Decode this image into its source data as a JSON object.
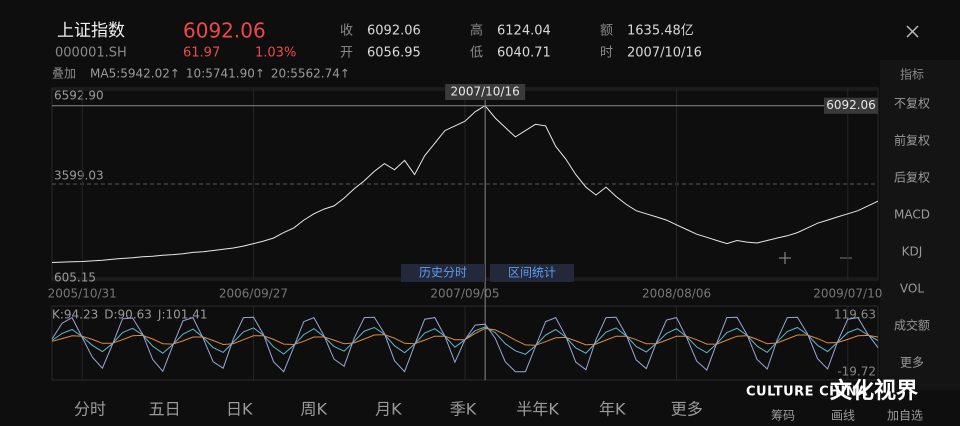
{
  "header": {
    "title": "上证指数",
    "code": "000001.SH",
    "price": 6092.06,
    "change": 61.97,
    "change_pct": "1.03%"
  },
  "stats": [
    {
      "label": "收",
      "value": 6092.06
    },
    {
      "label": "开",
      "value": 6056.95
    },
    {
      "label": "高",
      "value": 6124.04
    },
    {
      "label": "低",
      "value": 6040.71
    },
    {
      "label": "额",
      "value": "1635.48亿"
    },
    {
      "label": "时",
      "value": "2007/10/16"
    }
  ],
  "overlay": {
    "label": "叠加",
    "ma": [
      {
        "text": "MA5:5942.02↑",
        "color": "#7fb3dc"
      },
      {
        "text": "10:5741.90↑",
        "color": "#e59a4b"
      },
      {
        "text": "20:5562.74↑",
        "color": "#6cc4da"
      }
    ]
  },
  "chart_data": [
    {
      "type": "line",
      "color": "#e8e8e8",
      "categories": [
        null,
        null,
        null,
        "2005/10/31",
        null,
        null,
        null,
        null,
        null,
        null,
        null,
        null,
        null,
        null,
        null,
        null,
        null,
        null,
        null,
        null,
        "2006/09/27",
        null,
        null,
        null,
        null,
        null,
        null,
        null,
        null,
        null,
        null,
        null,
        null,
        null,
        null,
        null,
        null,
        null,
        null,
        null,
        null,
        "2007/09/05",
        null,
        null,
        null,
        null,
        null,
        null,
        null,
        null,
        null,
        null,
        null,
        null,
        null,
        null,
        null,
        null,
        null,
        null,
        null,
        null,
        "2008/08/06",
        null,
        null,
        null,
        null,
        null,
        null,
        null,
        null,
        null,
        null,
        null,
        null,
        null,
        null,
        null,
        null,
        "2009/07/10",
        null,
        null,
        null
      ],
      "values": [
        1100,
        1110,
        1120,
        1130,
        1150,
        1170,
        1200,
        1230,
        1250,
        1280,
        1300,
        1330,
        1350,
        1380,
        1420,
        1440,
        1480,
        1520,
        1560,
        1620,
        1700,
        1780,
        1880,
        2050,
        2200,
        2450,
        2650,
        2800,
        2900,
        3150,
        3450,
        3700,
        4000,
        4250,
        4050,
        4350,
        3900,
        4500,
        4900,
        5300,
        5450,
        5600,
        5900,
        6092.06,
        5700,
        5400,
        5100,
        5300,
        5500,
        5450,
        4800,
        4400,
        3900,
        3500,
        3250,
        3500,
        3200,
        2950,
        2750,
        2650,
        2550,
        2450,
        2300,
        2150,
        2000,
        1900,
        1800,
        1700,
        1800,
        1750,
        1720,
        1800,
        1880,
        1950,
        2050,
        2200,
        2350,
        2450,
        2550,
        2650,
        2750,
        2900,
        3050
      ],
      "ylim": [
        605.15,
        6592.9
      ],
      "yticks": [
        {
          "value": 6592.9,
          "label": "6592.90"
        },
        3599.03,
        605.15
      ],
      "cursor": {
        "date": "2007/10/16",
        "value": 6092.06
      },
      "buttons": [
        "历史分时",
        "区间统计"
      ]
    },
    {
      "type": "line",
      "ylim": [
        -19.72,
        119.63
      ],
      "yticks": [
        119.63,
        -19.72
      ],
      "series": [
        {
          "name": "K:94.23",
          "color": "#5fb8cf",
          "values": [
            60,
            78,
            88,
            70,
            48,
            32,
            52,
            80,
            91,
            74,
            46,
            28,
            50,
            76,
            89,
            68,
            42,
            30,
            56,
            82,
            92,
            73,
            44,
            26,
            48,
            75,
            90,
            70,
            45,
            33,
            58,
            84,
            93,
            76,
            47,
            29,
            51,
            79,
            90,
            71,
            43,
            62,
            85,
            94.23,
            80,
            52,
            34,
            25,
            47,
            74,
            88,
            69,
            41,
            28,
            55,
            81,
            92,
            72,
            45,
            31,
            53,
            78,
            90,
            70,
            44,
            29,
            52,
            80,
            91,
            73,
            46,
            30,
            57,
            83,
            93,
            75,
            48,
            32,
            56,
            80,
            90,
            74,
            60
          ]
        },
        {
          "name": "D:90.63",
          "color": "#e08a3c",
          "values": [
            58,
            65,
            72,
            71,
            63,
            53,
            53,
            62,
            72,
            73,
            64,
            52,
            51,
            59,
            69,
            69,
            60,
            50,
            52,
            62,
            72,
            72,
            63,
            51,
            50,
            58,
            69,
            69,
            61,
            52,
            54,
            64,
            74,
            75,
            66,
            53,
            52,
            61,
            71,
            71,
            62,
            62,
            78,
            90.63,
            87,
            75,
            61,
            49,
            48,
            57,
            67,
            68,
            59,
            49,
            51,
            61,
            71,
            71,
            62,
            52,
            52,
            61,
            71,
            71,
            62,
            51,
            51,
            61,
            71,
            72,
            63,
            52,
            54,
            64,
            74,
            74,
            65,
            54,
            55,
            63,
            72,
            73,
            69
          ]
        },
        {
          "name": "J:101.41",
          "color": "#9aa6d6",
          "values": [
            64,
            104,
            118,
            68,
            18,
            -10,
            50,
            115,
            117,
            76,
            12,
            -18,
            48,
            110,
            118,
            66,
            6,
            -10,
            64,
            118,
            119,
            75,
            6,
            -19,
            44,
            108,
            118,
            72,
            13,
            -5,
            66,
            118,
            119,
            78,
            9,
            -19,
            49,
            114,
            118,
            71,
            5,
            62,
            99,
            101.41,
            66,
            6,
            -19,
            -19,
            45,
            108,
            118,
            71,
            5,
            -14,
            63,
            118,
            119,
            74,
            11,
            -11,
            55,
            112,
            118,
            68,
            8,
            -15,
            54,
            118,
            119,
            75,
            12,
            -12,
            63,
            118,
            119,
            77,
            14,
            -12,
            58,
            114,
            118,
            76,
            42
          ]
        }
      ]
    }
  ],
  "sidebar": {
    "title": "指标",
    "items": [
      {
        "label": "不复权",
        "active": true
      },
      {
        "label": "前复权",
        "active": false
      },
      {
        "label": "后复权",
        "active": false
      },
      {
        "label": "MACD",
        "active": false
      },
      {
        "label": "KDJ",
        "active": true
      },
      {
        "label": "VOL",
        "active": false
      },
      {
        "label": "成交额",
        "active": false
      },
      {
        "label": "更多",
        "active": false
      }
    ]
  },
  "tabs": [
    {
      "label": "分时",
      "active": false
    },
    {
      "label": "五日",
      "active": false
    },
    {
      "label": "日K",
      "active": true
    },
    {
      "label": "周K",
      "active": false
    },
    {
      "label": "月K",
      "active": false
    },
    {
      "label": "季K",
      "active": false
    },
    {
      "label": "半年K",
      "active": false
    },
    {
      "label": "年K",
      "active": false
    },
    {
      "label": "更多",
      "active": false
    }
  ],
  "tools": [
    "筹码",
    "画线",
    "加自选"
  ],
  "watermark": {
    "latin": "CULTURE CHINA",
    "chinese": "文化视界"
  }
}
